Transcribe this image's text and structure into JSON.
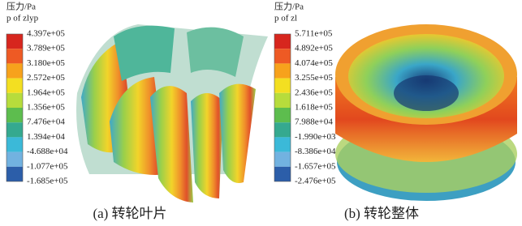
{
  "panels": [
    {
      "legend_title": "压力/Pa",
      "legend_subtitle": "p of zlyp",
      "labels": [
        "4.397e+05",
        "3.789e+05",
        "3.180e+05",
        "2.572e+05",
        "1.964e+05",
        "1.356e+05",
        "7.476e+04",
        "1.394e+04",
        "-4.688e+04",
        "-1.077e+05",
        "-1.685e+05"
      ],
      "caption": "(a) 转轮叶片"
    },
    {
      "legend_title": "压力/Pa",
      "legend_subtitle": "p of zl",
      "labels": [
        "5.711e+05",
        "4.892e+05",
        "4.074e+05",
        "3.255e+05",
        "2.436e+05",
        "1.618e+05",
        "7.988e+04",
        "-1.990e+03",
        "-8.386e+04",
        "-1.657e+05",
        "-2.476e+05"
      ],
      "caption": "(b) 转轮整体"
    }
  ]
}
